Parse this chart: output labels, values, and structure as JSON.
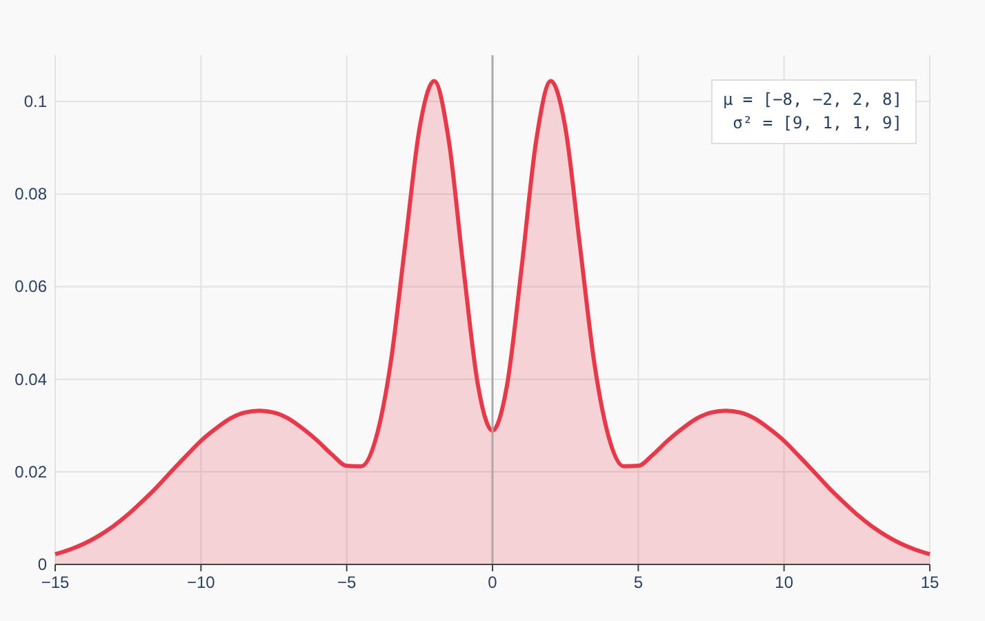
{
  "chart_data": {
    "type": "area",
    "x": [
      -15,
      -14.5,
      -14,
      -13.5,
      -13,
      -12.5,
      -12,
      -11.5,
      -11,
      -10.5,
      -10,
      -9.5,
      -9,
      -8.5,
      -8,
      -7.5,
      -7,
      -6.5,
      -6,
      -5.5,
      -5,
      -4.5,
      -4,
      -3.5,
      -3,
      -2.5,
      -2,
      -1.5,
      -1,
      -0.5,
      0,
      0.5,
      1,
      1.5,
      2,
      2.5,
      3,
      3.5,
      4,
      4.5,
      5,
      5.5,
      6,
      6.5,
      7,
      7.5,
      8,
      8.5,
      9,
      9.5,
      10,
      10.5,
      11,
      11.5,
      12,
      12.5,
      13,
      13.5,
      14,
      14.5,
      15
    ],
    "series": [
      {
        "color": "#e8394a",
        "values": [
          0.0022,
          0.0032,
          0.0045,
          0.0062,
          0.0083,
          0.0108,
          0.0137,
          0.0168,
          0.0202,
          0.0235,
          0.0267,
          0.0293,
          0.0315,
          0.0328,
          0.0332,
          0.0328,
          0.0315,
          0.0293,
          0.0267,
          0.0237,
          0.0213,
          0.0212,
          0.0272,
          0.0432,
          0.0688,
          0.0943,
          0.1044,
          0.0916,
          0.0642,
          0.0388,
          0.0289,
          0.0388,
          0.0642,
          0.0916,
          0.1044,
          0.0943,
          0.0688,
          0.0432,
          0.0272,
          0.0212,
          0.0213,
          0.0237,
          0.0267,
          0.0293,
          0.0315,
          0.0328,
          0.0332,
          0.0328,
          0.0315,
          0.0293,
          0.0267,
          0.0235,
          0.0202,
          0.0168,
          0.0137,
          0.0108,
          0.0083,
          0.0062,
          0.0045,
          0.0032,
          0.0022
        ]
      }
    ],
    "xlim": [
      -15,
      15
    ],
    "xticks": [
      {
        "value": -15,
        "label": "−15"
      },
      {
        "value": -10,
        "label": "−10"
      },
      {
        "value": -5,
        "label": "−5"
      },
      0,
      5,
      10,
      15
    ],
    "ylim": [
      0,
      0.11
    ],
    "yticks": [
      0,
      0.02,
      0.04,
      0.06,
      0.08,
      0.1
    ],
    "grid": true,
    "ref_lines": [
      {
        "axis": "x",
        "value": 0,
        "color": "#aaaaaa"
      }
    ],
    "annotations": [
      "μ = [−8, −2, 2, 8]",
      "σ² = [9, 1, 1, 9]"
    ]
  }
}
